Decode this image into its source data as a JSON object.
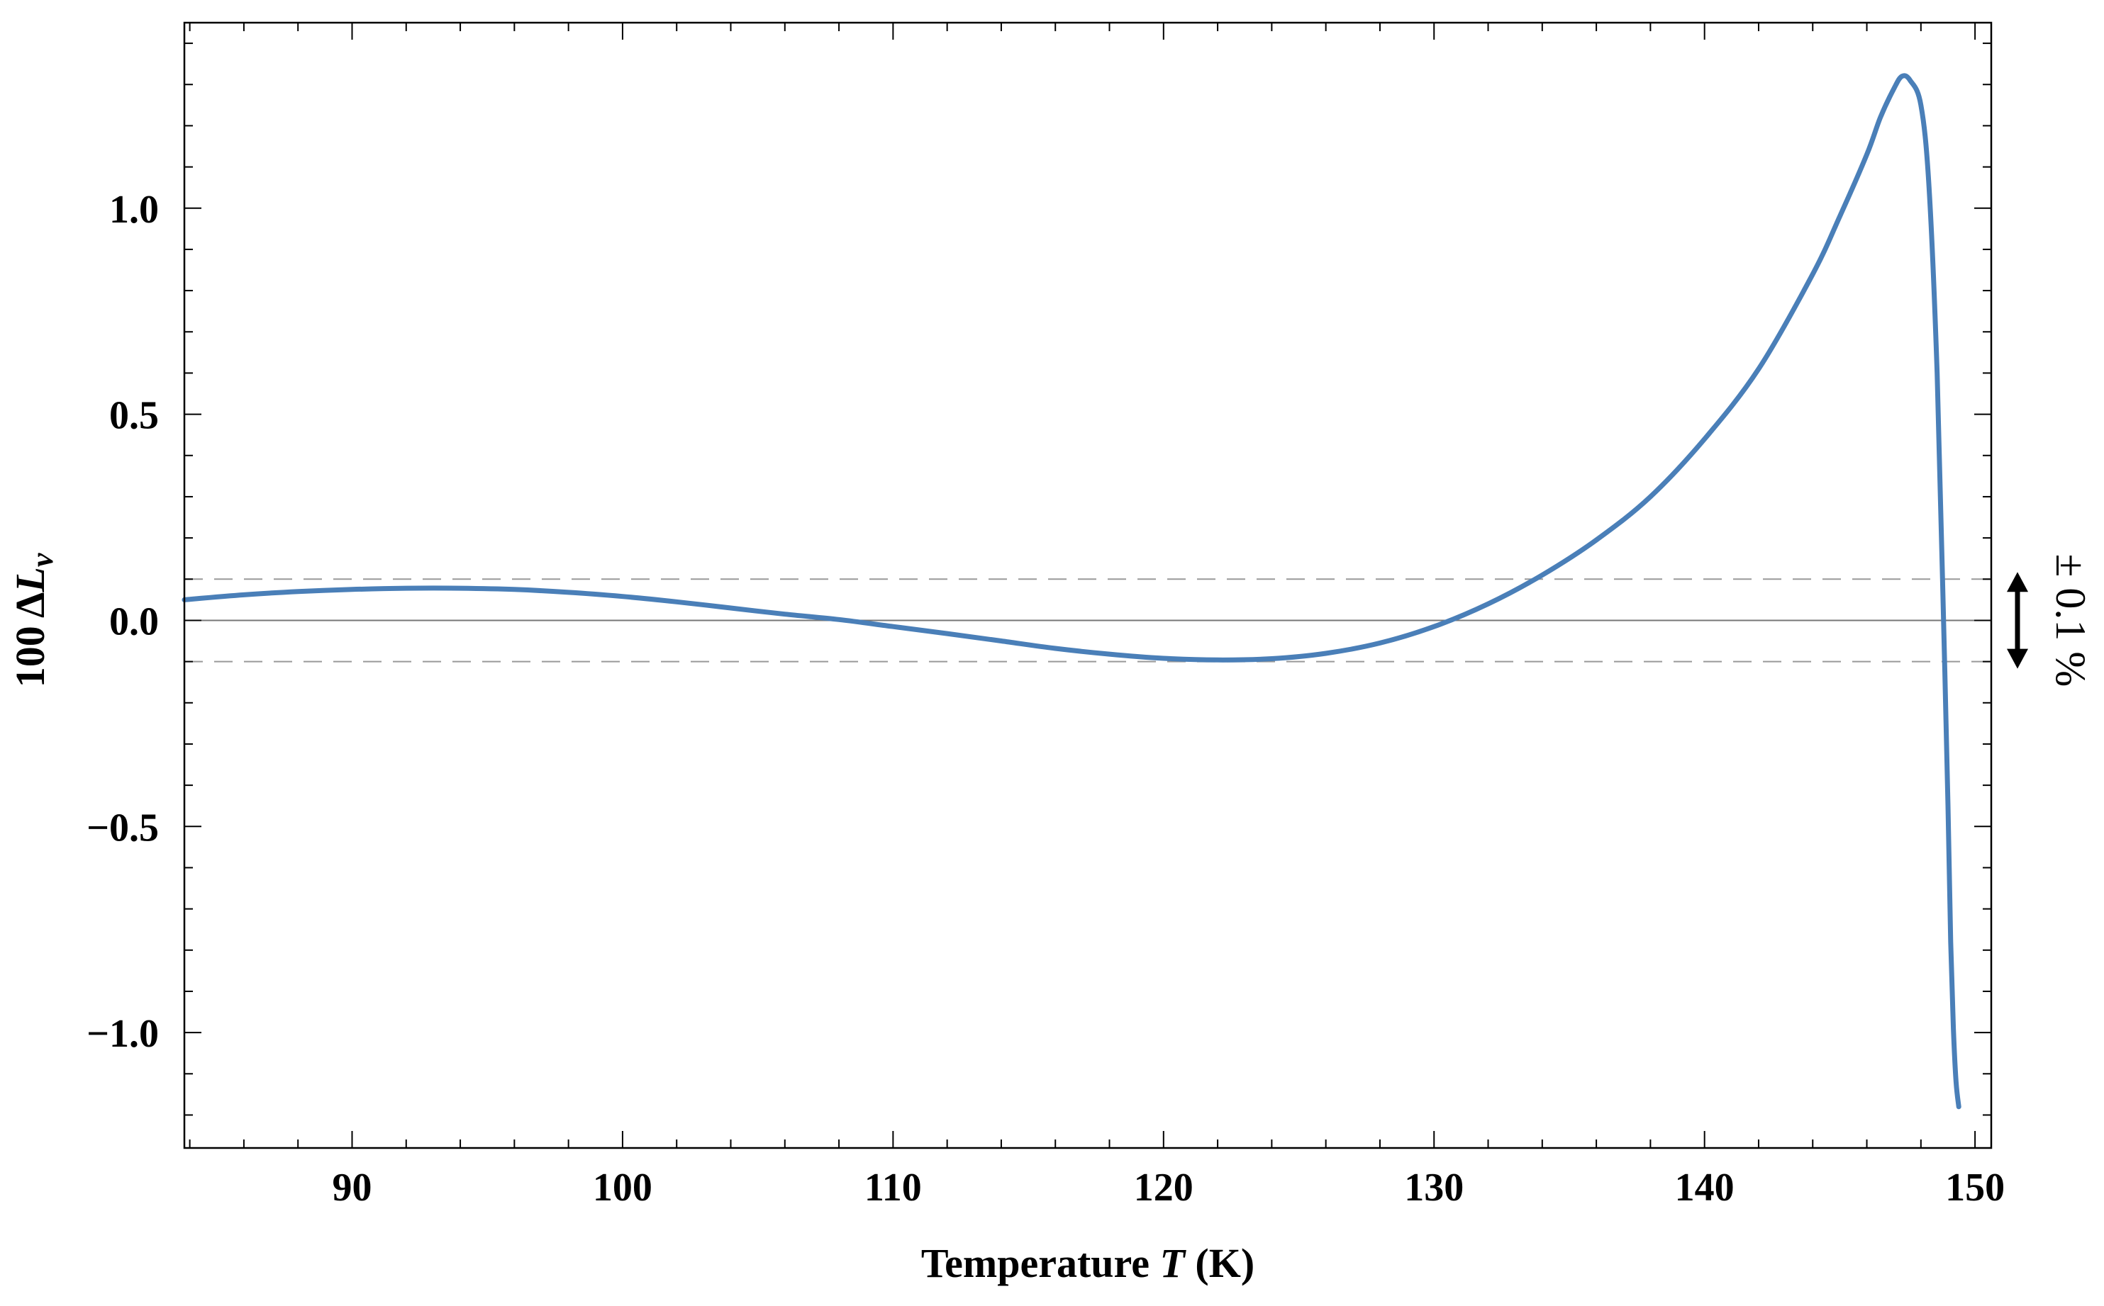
{
  "chart_data": {
    "type": "line",
    "title": "",
    "xlabel": {
      "prefix": "Temperature ",
      "var": "T",
      "suffix": " (K)"
    },
    "ylabel": {
      "prefix": "100 Δ",
      "var": "L",
      "sub": "v"
    },
    "xlim": [
      83.8,
      150.6
    ],
    "ylim": [
      -1.28,
      1.45
    ],
    "xticks": [
      90,
      100,
      110,
      120,
      130,
      140,
      150
    ],
    "xtick_labels": [
      "90",
      "100",
      "110",
      "120",
      "130",
      "140",
      "150"
    ],
    "yticks": [
      -1.0,
      -0.5,
      0.0,
      0.5,
      1.0
    ],
    "ytick_labels": [
      "−1.0",
      "−0.5",
      "0.0",
      "0.5",
      "1.0"
    ],
    "band": {
      "upper": 0.1,
      "lower": -0.1,
      "label": "± 0.1 %"
    },
    "series": [
      {
        "name": "100 ΔLv",
        "color": "#4a7fb8",
        "x": [
          83.8,
          86,
          88,
          90,
          92,
          94,
          96,
          98,
          100,
          102,
          104,
          106,
          108,
          110,
          112,
          114,
          116,
          118,
          120,
          122,
          124,
          126,
          128,
          130,
          132,
          134,
          136,
          138,
          140,
          142,
          144,
          145,
          146,
          146.5,
          147,
          147.3,
          147.6,
          148,
          148.3,
          148.6,
          148.8,
          149.0,
          149.1,
          149.2,
          149.3,
          149.4
        ],
        "y": [
          0.05,
          0.062,
          0.07,
          0.075,
          0.078,
          0.078,
          0.075,
          0.068,
          0.058,
          0.045,
          0.03,
          0.015,
          0.002,
          -0.015,
          -0.032,
          -0.05,
          -0.068,
          -0.082,
          -0.092,
          -0.096,
          -0.093,
          -0.08,
          -0.055,
          -0.015,
          0.04,
          0.11,
          0.195,
          0.3,
          0.44,
          0.61,
          0.84,
          0.98,
          1.13,
          1.22,
          1.29,
          1.32,
          1.31,
          1.25,
          1.05,
          0.6,
          0.1,
          -0.45,
          -0.78,
          -0.99,
          -1.12,
          -1.18
        ]
      }
    ]
  }
}
